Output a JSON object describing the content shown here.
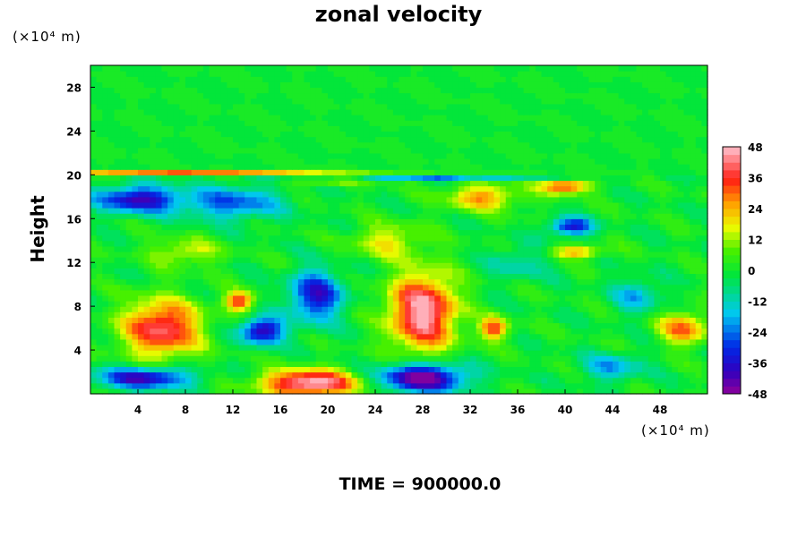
{
  "chart_data": {
    "type": "heatmap",
    "title": "zonal velocity",
    "ylabel": "Height",
    "x_unit": "(×10⁴ m)",
    "y_unit": "(×10⁴ m)",
    "footer": "TIME = 900000.0",
    "xlim": [
      0,
      52
    ],
    "ylim": [
      0,
      30
    ],
    "x_ticks": [
      4,
      8,
      12,
      16,
      20,
      24,
      28,
      32,
      36,
      40,
      44,
      48
    ],
    "y_ticks": [
      4,
      8,
      12,
      16,
      20,
      24,
      28
    ],
    "colorbar": {
      "min": -48,
      "max": 48,
      "ticks": [
        48,
        36,
        24,
        12,
        0,
        -12,
        -24,
        -36,
        -48
      ],
      "levels": 32
    },
    "features": [
      {
        "x": 6,
        "y": 6,
        "value": 42,
        "sx": 3.2,
        "sy": 2.6
      },
      {
        "x": 28,
        "y": 7.5,
        "value": 48,
        "sx": 2.8,
        "sy": 3.5
      },
      {
        "x": 18.5,
        "y": 1,
        "value": 50,
        "sx": 4,
        "sy": 1.2
      },
      {
        "x": 14.5,
        "y": 5.8,
        "value": -42,
        "sx": 1.8,
        "sy": 1.2
      },
      {
        "x": 19,
        "y": 9,
        "value": -36,
        "sx": 2.2,
        "sy": 2.3
      },
      {
        "x": 28,
        "y": 1.5,
        "value": -52,
        "sx": 3.5,
        "sy": 1.3
      },
      {
        "x": 4.5,
        "y": 1.5,
        "value": -40,
        "sx": 4,
        "sy": 1
      },
      {
        "x": 4,
        "y": 17.8,
        "value": -40,
        "sx": 3.5,
        "sy": 1.2
      },
      {
        "x": 12,
        "y": 17.5,
        "value": -26,
        "sx": 4,
        "sy": 1.5
      },
      {
        "x": 40.5,
        "y": 15.3,
        "value": -36,
        "sx": 1.8,
        "sy": 0.8
      },
      {
        "x": 33,
        "y": 18,
        "value": 26,
        "sx": 3,
        "sy": 1.2
      },
      {
        "x": 40,
        "y": 19,
        "value": 36,
        "sx": 2,
        "sy": 0.7
      },
      {
        "x": 50,
        "y": 6,
        "value": 30,
        "sx": 2,
        "sy": 1.5
      },
      {
        "x": 12.5,
        "y": 8.5,
        "value": 36,
        "sx": 1.2,
        "sy": 0.9
      },
      {
        "x": 34,
        "y": 6,
        "value": 34,
        "sx": 1.2,
        "sy": 1.0
      },
      {
        "x": 41,
        "y": 13,
        "value": 26,
        "sx": 2.2,
        "sy": 0.6
      },
      {
        "x": 46,
        "y": 9,
        "value": -18,
        "sx": 2.0,
        "sy": 1.5
      },
      {
        "x": 25,
        "y": 14,
        "value": 18,
        "sx": 3.0,
        "sy": 1.5
      },
      {
        "x": 8,
        "y": 13,
        "value": 16,
        "sx": 3.0,
        "sy": 1.2
      },
      {
        "x": 20,
        "y": 19.5,
        "value": 14,
        "sx": 3.0,
        "sy": 0.5
      },
      {
        "x": 44,
        "y": 2.5,
        "value": -20,
        "sx": 2.5,
        "sy": 1.2
      },
      {
        "x": 36,
        "y": 12,
        "value": -12,
        "sx": 2.5,
        "sy": 1.5
      },
      {
        "x": 8,
        "y": 22.5,
        "value": 0,
        "sx": 1,
        "sy": 1
      }
    ]
  }
}
